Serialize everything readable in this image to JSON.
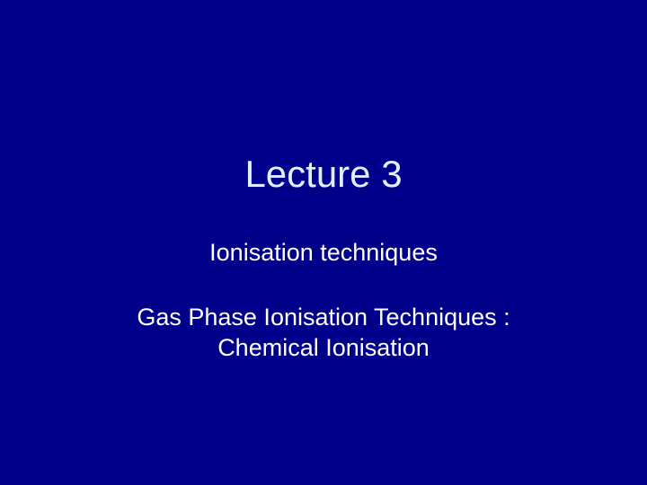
{
  "slide": {
    "title": "Lecture 3",
    "subtitle": "Ionisation techniques",
    "body_line1": "Gas Phase Ionisation Techniques :",
    "body_line2": "Chemical Ionisation"
  },
  "styling": {
    "background_color": "#00008b",
    "title_color": "#e0f0ff",
    "text_color": "#ffffff",
    "title_fontsize": 42,
    "subtitle_fontsize": 27,
    "body_fontsize": 27,
    "font_family": "Arial"
  }
}
